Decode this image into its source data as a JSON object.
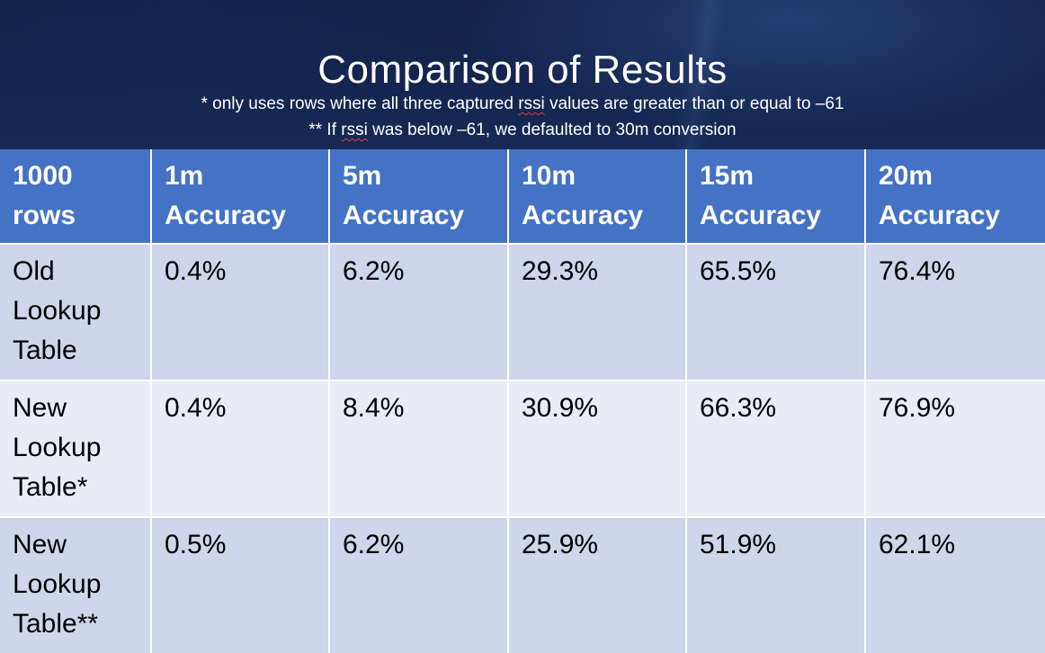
{
  "slide": {
    "title": "Comparison of Results",
    "note1_prefix": "* only uses rows where all three captured ",
    "note1_term": "rssi",
    "note1_suffix": " values are greater than or equal to –61",
    "note2_prefix": "** If ",
    "note2_term": "rssi",
    "note2_suffix": " was below –61, we defaulted to 30m conversion"
  },
  "colors": {
    "header_bg": "#4472c4",
    "row_dark": "#cfd5ea",
    "row_light": "#e9ebf5",
    "slide_bg": "#1a3163"
  },
  "table": {
    "headers": [
      [
        "1000",
        "rows"
      ],
      [
        "1m",
        "Accuracy"
      ],
      [
        "5m",
        "Accuracy"
      ],
      [
        "10m",
        "Accuracy"
      ],
      [
        "15m",
        "Accuracy"
      ],
      [
        "20m",
        "Accuracy"
      ]
    ],
    "rows": [
      {
        "label": [
          "Old",
          "Lookup",
          "Table"
        ],
        "values": [
          "0.4%",
          "6.2%",
          "29.3%",
          "65.5%",
          "76.4%"
        ]
      },
      {
        "label": [
          "New",
          "Lookup",
          "Table*"
        ],
        "values": [
          "0.4%",
          "8.4%",
          "30.9%",
          "66.3%",
          "76.9%"
        ]
      },
      {
        "label": [
          "New",
          "Lookup",
          "Table**"
        ],
        "values": [
          "0.5%",
          "6.2%",
          "25.9%",
          "51.9%",
          "62.1%"
        ]
      }
    ]
  }
}
